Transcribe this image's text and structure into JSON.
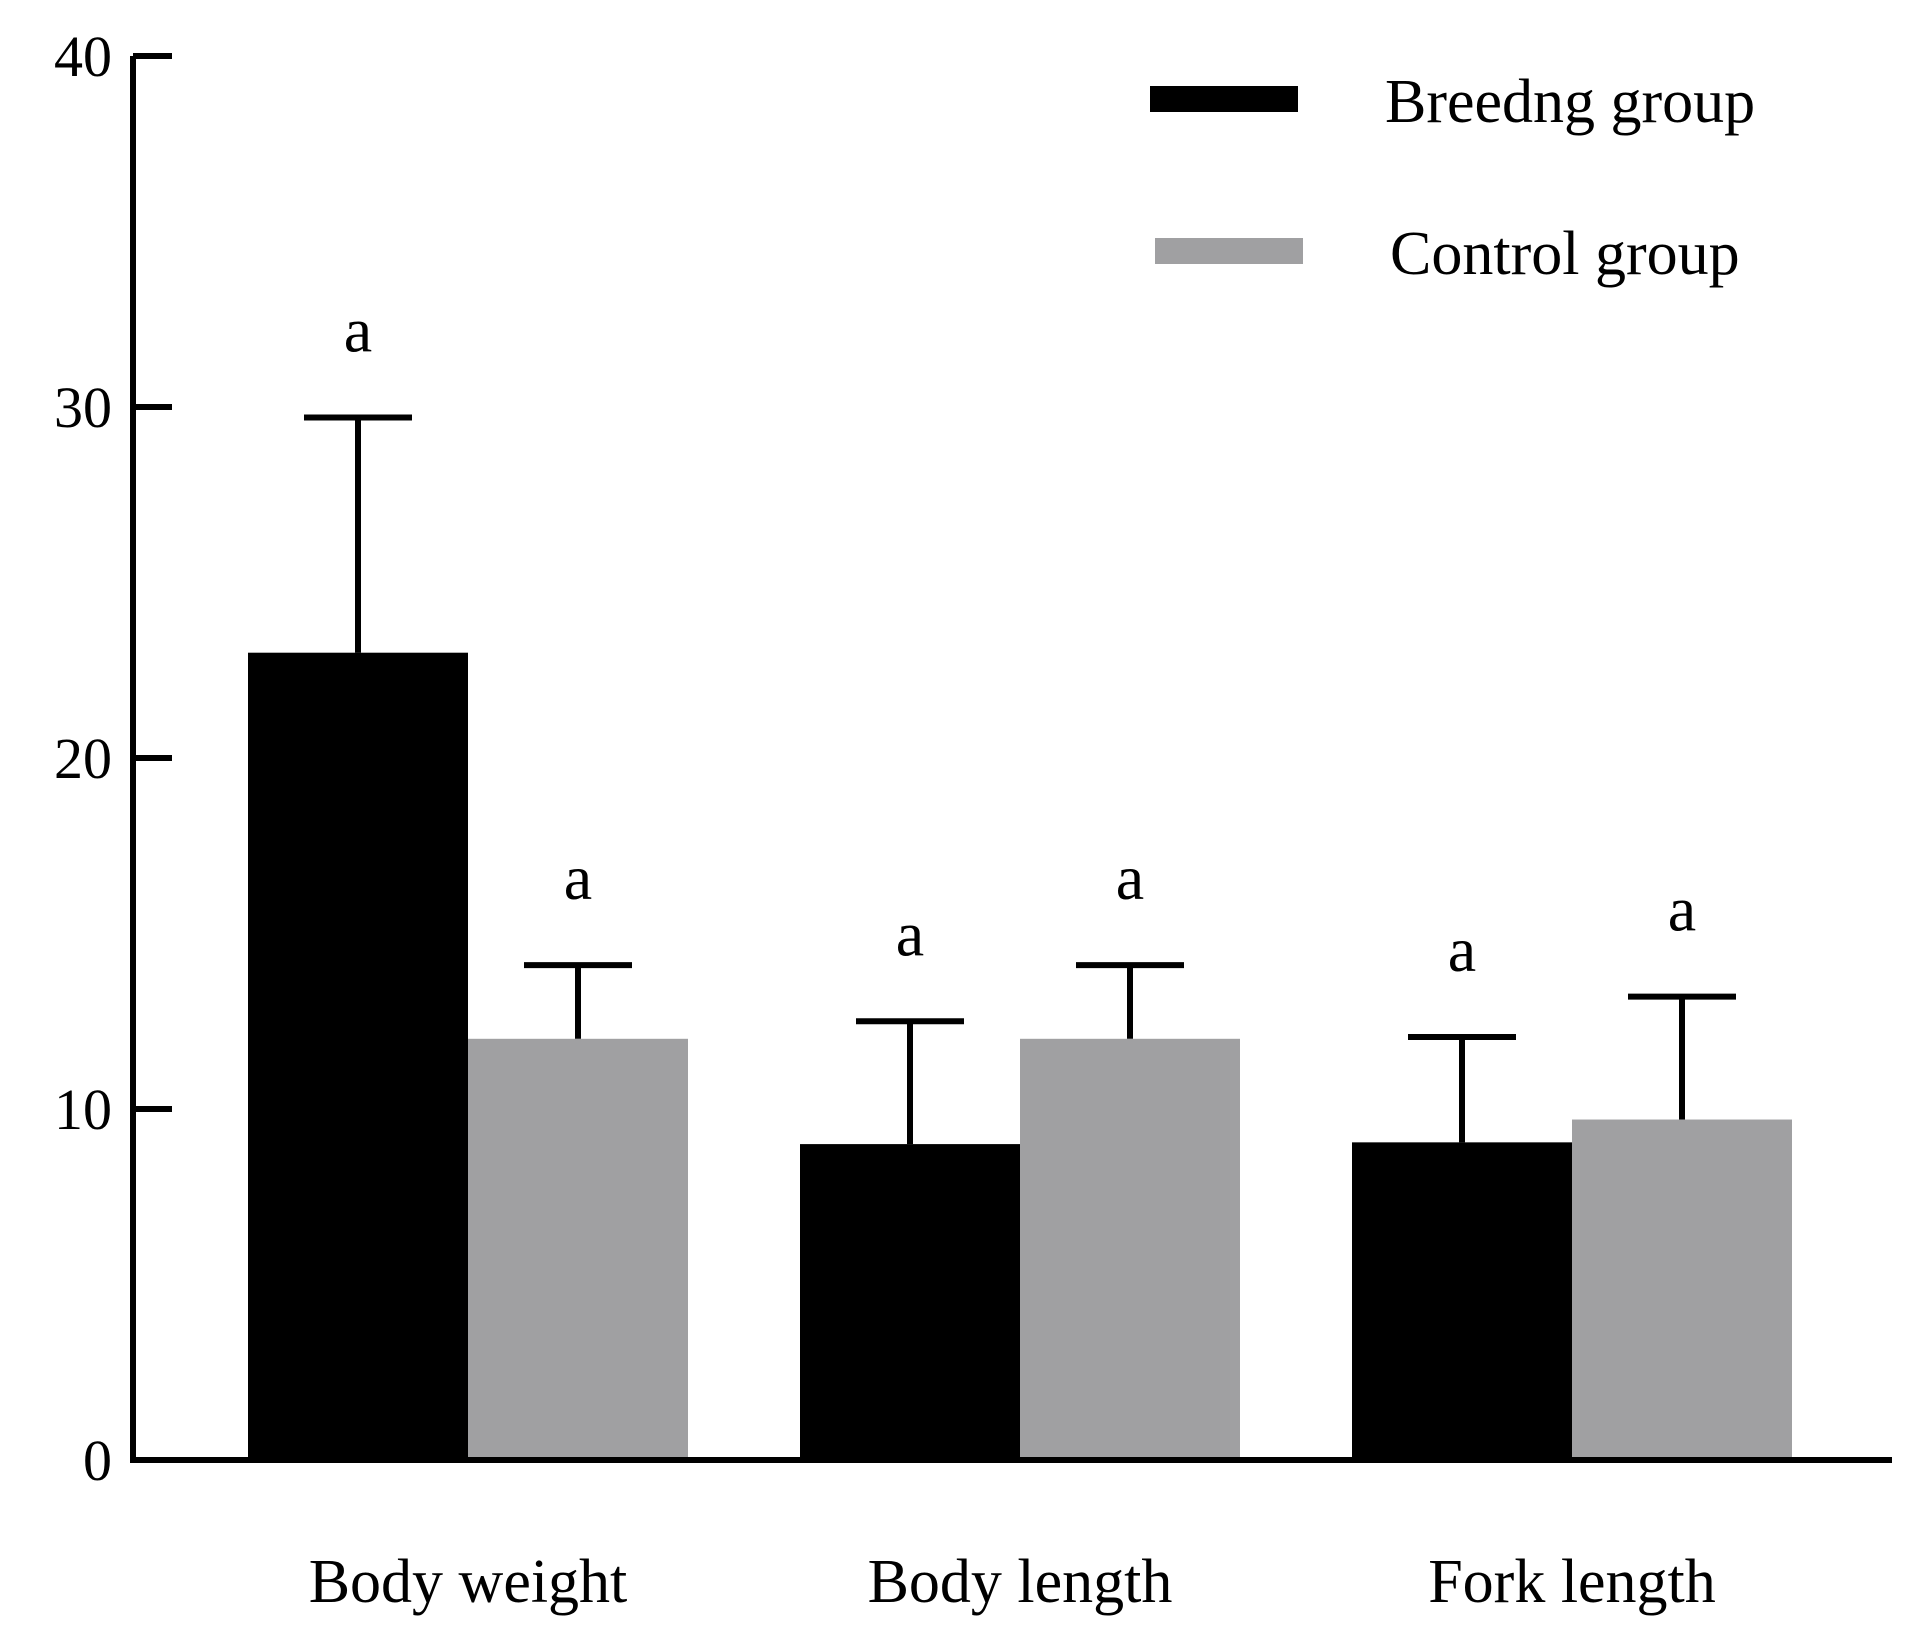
{
  "chart_data": {
    "type": "bar",
    "title": "",
    "xlabel": "",
    "ylabel": "",
    "categories": [
      "Body weight",
      "Body length",
      "Fork length"
    ],
    "series": [
      {
        "name": "Breedng group",
        "color": "#000000",
        "values": [
          23.0,
          9.0,
          9.05
        ],
        "errors": [
          6.7,
          3.5,
          3.0
        ],
        "annotations": [
          "a",
          "a",
          "a"
        ]
      },
      {
        "name": "Control group",
        "color": "#a0a0a2",
        "values": [
          12.0,
          12.0,
          9.7
        ],
        "errors": [
          2.1,
          2.1,
          3.5
        ],
        "annotations": [
          "a",
          "a",
          "a"
        ]
      }
    ],
    "ylim": [
      0,
      40
    ],
    "yticks": [
      "0",
      "10",
      "20",
      "30",
      "40"
    ],
    "grid": false,
    "legend_position": "top-right"
  }
}
